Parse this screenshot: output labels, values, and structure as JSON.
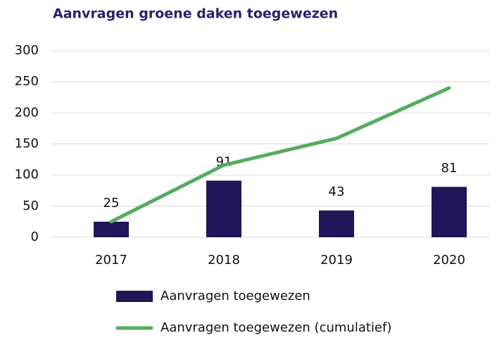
{
  "chart_data": {
    "type": "bar",
    "title": "Aanvragen groene daken toegewezen",
    "categories": [
      "2017",
      "2018",
      "2019",
      "2020"
    ],
    "series": [
      {
        "name": "Aanvragen toegewezen",
        "type": "bar",
        "color": "#201657",
        "values": [
          25,
          91,
          43,
          81
        ]
      },
      {
        "name": "Aanvragen toegewezen (cumulatief)",
        "type": "line",
        "color": "#55ab5e",
        "values": [
          25,
          116,
          159,
          240
        ]
      }
    ],
    "ylim": [
      0,
      300
    ],
    "yticks": [
      0,
      50,
      100,
      150,
      200,
      250,
      300
    ],
    "grid": true
  }
}
